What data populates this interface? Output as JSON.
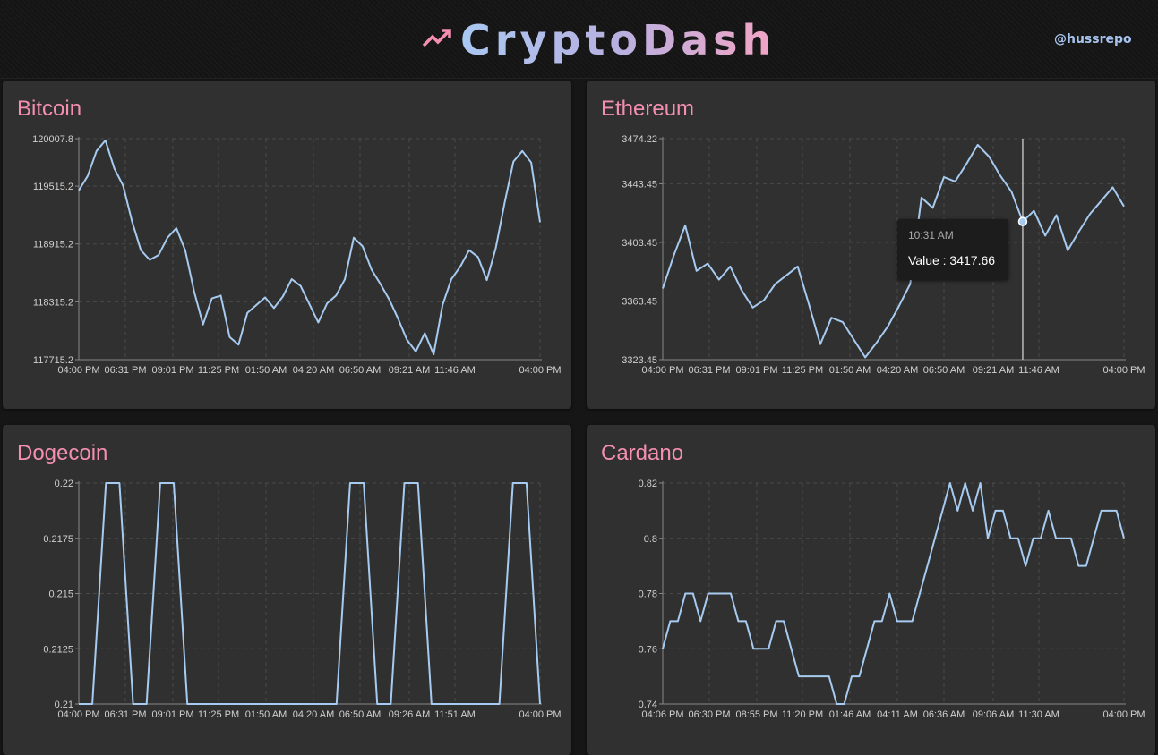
{
  "header": {
    "title": "CryptoDash",
    "handle": "@hussrepo",
    "logo_icon": "trending-up-icon",
    "accent": "#f48fb1",
    "line_color": "#a7cbf0"
  },
  "tooltip": {
    "label": "10:31 AM",
    "value": "Value : 3417.66"
  },
  "chart_data": [
    {
      "type": "line",
      "title": "Bitcoin",
      "y_ticks": [
        "120007.8",
        "119515.2",
        "118915.2",
        "118315.2",
        "117715.2"
      ],
      "y_tick_values": [
        120007.8,
        119515.2,
        118915.2,
        118315.2,
        117715.2
      ],
      "x_ticks": [
        "04:00 PM",
        "06:31 PM",
        "09:01 PM",
        "11:25 PM",
        "01:50 AM",
        "04:20 AM",
        "06:50 AM",
        "09:21 AM",
        "11:46 AM",
        "04:00 PM"
      ],
      "ylim": [
        117715.2,
        120007.8
      ],
      "grid": true,
      "series": [
        {
          "values": [
            119470,
            119620,
            119880,
            119990,
            119700,
            119520,
            119150,
            118850,
            118750,
            118800,
            118980,
            119080,
            118850,
            118420,
            118080,
            118350,
            118380,
            117950,
            117870,
            118200,
            118280,
            118360,
            118250,
            118370,
            118550,
            118480,
            118290,
            118100,
            118300,
            118380,
            118550,
            118980,
            118890,
            118650,
            118500,
            118340,
            118140,
            117920,
            117800,
            117990,
            117770,
            118280,
            118550,
            118680,
            118850,
            118780,
            118540,
            118870,
            119340,
            119770,
            119880,
            119760,
            119140
          ]
        }
      ]
    },
    {
      "type": "line",
      "title": "Ethereum",
      "y_ticks": [
        "3474.22",
        "3443.45",
        "3403.45",
        "3363.45",
        "3323.45"
      ],
      "y_tick_values": [
        3474.22,
        3443.45,
        3403.45,
        3363.45,
        3323.45
      ],
      "x_ticks": [
        "04:00 PM",
        "06:31 PM",
        "09:01 PM",
        "11:25 PM",
        "01:50 AM",
        "04:20 AM",
        "06:50 AM",
        "09:21 AM",
        "11:46 AM",
        "04:00 PM"
      ],
      "ylim": [
        3323.45,
        3474.22
      ],
      "grid": true,
      "hover_index": 32,
      "series": [
        {
          "values": [
            3372,
            3395,
            3415,
            3384,
            3389,
            3378,
            3387,
            3371,
            3359,
            3364,
            3375,
            3381,
            3387,
            3361,
            3334,
            3352,
            3349,
            3337,
            3325,
            3335,
            3346,
            3360,
            3375,
            3434,
            3427,
            3448,
            3445,
            3457,
            3470,
            3462,
            3449,
            3438,
            3417.66,
            3425,
            3408,
            3422,
            3398,
            3411,
            3423,
            3432,
            3441,
            3428
          ]
        }
      ]
    },
    {
      "type": "line",
      "title": "Dogecoin",
      "y_ticks": [
        "0.22",
        "0.2175",
        "0.215",
        "0.2125",
        "0.21"
      ],
      "y_tick_values": [
        0.22,
        0.2175,
        0.215,
        0.2125,
        0.21
      ],
      "x_ticks": [
        "04:00 PM",
        "06:31 PM",
        "09:01 PM",
        "11:25 PM",
        "01:50 AM",
        "04:20 AM",
        "06:50 AM",
        "09:26 AM",
        "11:51 AM",
        "04:00 PM"
      ],
      "ylim": [
        0.21,
        0.22
      ],
      "grid": true,
      "series": [
        {
          "values": [
            0.21,
            0.21,
            0.22,
            0.22,
            0.21,
            0.21,
            0.22,
            0.22,
            0.21,
            0.21,
            0.21,
            0.21,
            0.21,
            0.21,
            0.21,
            0.21,
            0.21,
            0.21,
            0.21,
            0.21,
            0.22,
            0.22,
            0.21,
            0.21,
            0.22,
            0.22,
            0.21,
            0.21,
            0.21,
            0.21,
            0.21,
            0.21,
            0.22,
            0.22,
            0.21
          ]
        }
      ]
    },
    {
      "type": "line",
      "title": "Cardano",
      "y_ticks": [
        "0.82",
        "0.8",
        "0.78",
        "0.76",
        "0.74"
      ],
      "y_tick_values": [
        0.82,
        0.8,
        0.78,
        0.76,
        0.74
      ],
      "x_ticks": [
        "04:06 PM",
        "06:30 PM",
        "08:55 PM",
        "11:20 PM",
        "01:46 AM",
        "04:11 AM",
        "06:36 AM",
        "09:06 AM",
        "11:30 AM",
        "04:00 PM"
      ],
      "ylim": [
        0.74,
        0.82
      ],
      "grid": true,
      "series": [
        {
          "values": [
            0.76,
            0.77,
            0.77,
            0.78,
            0.78,
            0.77,
            0.78,
            0.78,
            0.78,
            0.78,
            0.77,
            0.77,
            0.76,
            0.76,
            0.76,
            0.77,
            0.77,
            0.76,
            0.75,
            0.75,
            0.75,
            0.75,
            0.75,
            0.74,
            0.74,
            0.75,
            0.75,
            0.76,
            0.77,
            0.77,
            0.78,
            0.77,
            0.77,
            0.77,
            0.78,
            0.79,
            0.8,
            0.81,
            0.82,
            0.81,
            0.82,
            0.81,
            0.82,
            0.8,
            0.81,
            0.81,
            0.8,
            0.8,
            0.79,
            0.8,
            0.8,
            0.81,
            0.8,
            0.8,
            0.8,
            0.79,
            0.79,
            0.8,
            0.81,
            0.81,
            0.81,
            0.8
          ]
        }
      ]
    }
  ]
}
